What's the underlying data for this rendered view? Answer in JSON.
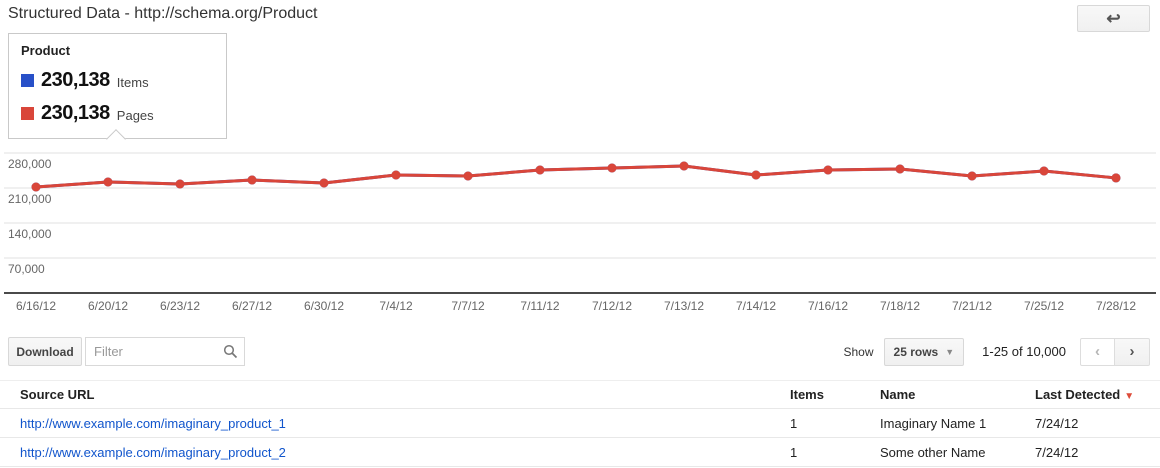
{
  "header": {
    "title": "Structured Data - http://schema.org/Product",
    "back_icon": "back-arrow"
  },
  "legend": {
    "title": "Product",
    "items_count": "230,138",
    "items_label": "Items",
    "pages_count": "230,138",
    "pages_label": "Pages",
    "items_color": "#2850c8",
    "pages_color": "#d9463a"
  },
  "chart_data": {
    "type": "line",
    "title": "Product structured data over time",
    "x": [
      "6/16/12",
      "6/20/12",
      "6/23/12",
      "6/27/12",
      "6/30/12",
      "7/4/12",
      "7/7/12",
      "7/11/12",
      "7/12/12",
      "7/13/12",
      "7/14/12",
      "7/16/12",
      "7/18/12",
      "7/21/12",
      "7/25/12",
      "7/28/12"
    ],
    "series": [
      {
        "name": "Items",
        "color": "#2850c8",
        "values": [
          212000,
          222000,
          218000,
          226000,
          220000,
          236000,
          234000,
          246000,
          250000,
          254000,
          236000,
          246000,
          248000,
          234000,
          244000,
          230138
        ]
      },
      {
        "name": "Pages",
        "color": "#d9463a",
        "values": [
          212000,
          222000,
          218000,
          226000,
          220000,
          236000,
          234000,
          246000,
          250000,
          254000,
          236000,
          246000,
          248000,
          234000,
          244000,
          230138
        ]
      }
    ],
    "yticks": [
      70000,
      140000,
      210000,
      280000
    ],
    "ytick_labels": [
      "70,000",
      "140,000",
      "210,000",
      "280,000"
    ],
    "ylim": [
      0,
      280000
    ],
    "grid": true,
    "legend_position": "tooltip-top-left",
    "grid_color": "#e2e2e2",
    "axis_color": "#4a4a4a",
    "tick_label_color": "#666"
  },
  "toolbar": {
    "download_label": "Download",
    "filter_placeholder": "Filter",
    "show_label": "Show",
    "rows_dropdown_value": "25 rows",
    "range_text": "1-25 of 10,000",
    "prev_icon": "‹",
    "next_icon": "›"
  },
  "table": {
    "columns": [
      "Source URL",
      "Items",
      "Name",
      "Last Detected"
    ],
    "sort_column": "Last Detected",
    "sort_direction": "descending",
    "sort_color": "#dd4b39",
    "rows": [
      {
        "url": "http://www.example.com/imaginary_product_1",
        "items": "1",
        "name": "Imaginary Name 1",
        "last_detected": "7/24/12"
      },
      {
        "url": "http://www.example.com/imaginary_product_2",
        "items": "1",
        "name": "Some other Name",
        "last_detected": "7/24/12"
      }
    ]
  }
}
